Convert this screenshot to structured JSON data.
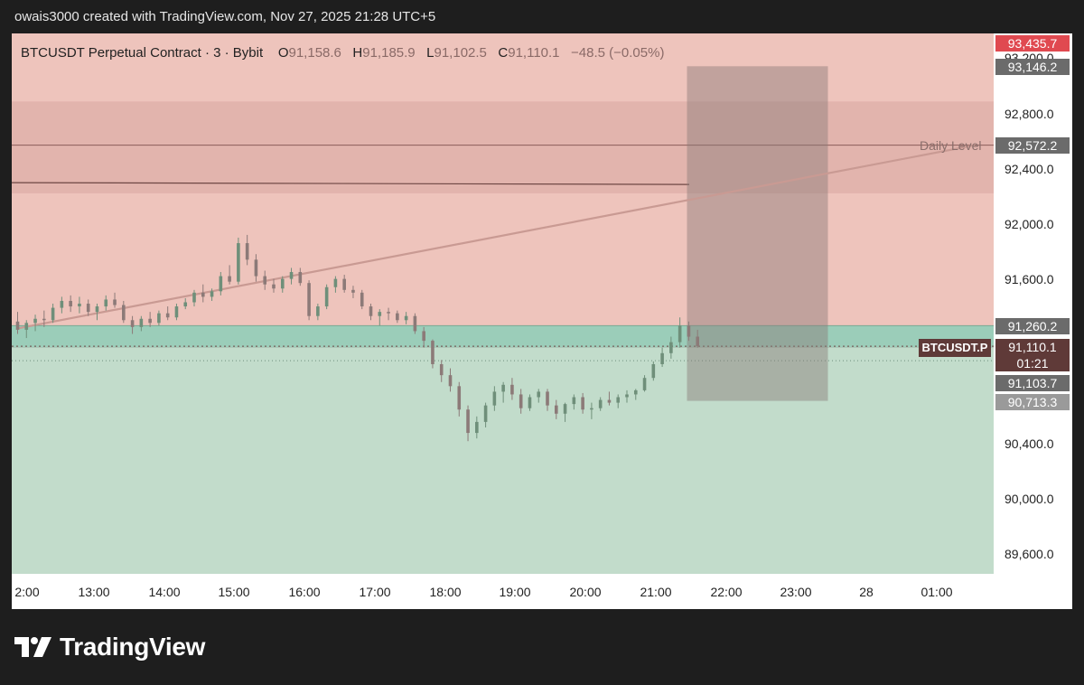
{
  "header": {
    "credit": "owais3000 created with TradingView.com, Nov 27, 2025 21:28 UTC+5"
  },
  "legend": {
    "symbol": "BTCUSDT Perpetual Contract · 3 · Bybit",
    "o_label": "O",
    "o_value": "91,158.6",
    "h_label": "H",
    "h_value": "91,185.9",
    "l_label": "L",
    "l_value": "91,102.5",
    "c_label": "C",
    "c_value": "91,110.1",
    "change": "−48.5 (−0.05%)"
  },
  "price_axis": {
    "ticks": [
      "93,200.0",
      "92,800.0",
      "92,400.0",
      "92,000.0",
      "91,600.0",
      "90,400.0",
      "90,000.0",
      "89,600.0"
    ],
    "tags": {
      "top": "93,435.7",
      "target": "93,146.2",
      "daily": "92,572.2",
      "entry": "91,260.2",
      "last": "91,110.1",
      "countdown": "01:21",
      "low1": "91,103.7",
      "low2": "90,713.3"
    }
  },
  "time_axis": {
    "ticks": [
      "2:00",
      "13:00",
      "14:00",
      "15:00",
      "16:00",
      "17:00",
      "18:00",
      "19:00",
      "20:00",
      "21:00",
      "22:00",
      "23:00",
      "28",
      "01:00"
    ]
  },
  "annotations": {
    "daily_level": "Daily Level",
    "symbol_tag": "BTCUSDT.P"
  },
  "brand": {
    "name": "TradingView"
  },
  "colors": {
    "upper_zone": "#eec4bc",
    "lower_zone": "#c2dccb",
    "entry_band": "#9bcdb9",
    "top_tag": "#e04950",
    "label_gray": "#6b6b6b"
  },
  "chart_data": {
    "type": "candlestick",
    "timeframe": "3",
    "y_range": [
      89400,
      93450
    ],
    "x_range": [
      "11:55",
      "01:30"
    ],
    "series": [
      {
        "values": [
          [
            91290,
            91360,
            91200,
            91230
          ],
          [
            91230,
            91300,
            91170,
            91280
          ],
          [
            91280,
            91340,
            91220,
            91310
          ],
          [
            91310,
            91370,
            91250,
            91300
          ],
          [
            91300,
            91420,
            91280,
            91390
          ],
          [
            91390,
            91470,
            91350,
            91440
          ],
          [
            91440,
            91480,
            91360,
            91400
          ],
          [
            91400,
            91470,
            91350,
            91420
          ],
          [
            91420,
            91450,
            91330,
            91360
          ],
          [
            91360,
            91420,
            91300,
            91400
          ],
          [
            91400,
            91480,
            91370,
            91450
          ],
          [
            91450,
            91500,
            91390,
            91410
          ],
          [
            91410,
            91440,
            91280,
            91300
          ],
          [
            91300,
            91330,
            91200,
            91250
          ],
          [
            91250,
            91330,
            91220,
            91310
          ],
          [
            91310,
            91360,
            91250,
            91280
          ],
          [
            91280,
            91370,
            91260,
            91350
          ],
          [
            91350,
            91400,
            91300,
            91320
          ],
          [
            91320,
            91420,
            91300,
            91400
          ],
          [
            91400,
            91460,
            91380,
            91430
          ],
          [
            91430,
            91520,
            91400,
            91500
          ],
          [
            91500,
            91560,
            91430,
            91470
          ],
          [
            91470,
            91530,
            91440,
            91510
          ],
          [
            91510,
            91650,
            91480,
            91620
          ],
          [
            91620,
            91700,
            91560,
            91580
          ],
          [
            91580,
            91900,
            91560,
            91860
          ],
          [
            91860,
            91920,
            91700,
            91740
          ],
          [
            91740,
            91780,
            91580,
            91620
          ],
          [
            91620,
            91660,
            91520,
            91560
          ],
          [
            91560,
            91600,
            91500,
            91530
          ],
          [
            91530,
            91620,
            91500,
            91600
          ],
          [
            91600,
            91680,
            91560,
            91650
          ],
          [
            91650,
            91680,
            91550,
            91570
          ],
          [
            91570,
            91590,
            91300,
            91330
          ],
          [
            91330,
            91420,
            91300,
            91400
          ],
          [
            91400,
            91560,
            91380,
            91540
          ],
          [
            91540,
            91620,
            91500,
            91600
          ],
          [
            91600,
            91630,
            91500,
            91520
          ],
          [
            91520,
            91550,
            91460,
            91500
          ],
          [
            91500,
            91520,
            91380,
            91400
          ],
          [
            91400,
            91420,
            91300,
            91330
          ],
          [
            91330,
            91380,
            91260,
            91360
          ],
          [
            91360,
            91390,
            91300,
            91350
          ],
          [
            91350,
            91370,
            91280,
            91300
          ],
          [
            91300,
            91360,
            91270,
            91330
          ],
          [
            91330,
            91350,
            91200,
            91220
          ],
          [
            91220,
            91250,
            91100,
            91150
          ],
          [
            91150,
            91160,
            90950,
            90980
          ],
          [
            90980,
            91010,
            90850,
            90900
          ],
          [
            90900,
            90950,
            90780,
            90820
          ],
          [
            90820,
            90850,
            90600,
            90650
          ],
          [
            90650,
            90680,
            90420,
            90480
          ],
          [
            90480,
            90600,
            90440,
            90560
          ],
          [
            90560,
            90700,
            90520,
            90680
          ],
          [
            90680,
            90820,
            90640,
            90780
          ],
          [
            90780,
            90850,
            90700,
            90830
          ],
          [
            90830,
            90880,
            90720,
            90760
          ],
          [
            90760,
            90800,
            90620,
            90660
          ],
          [
            90660,
            90760,
            90640,
            90740
          ],
          [
            90740,
            90800,
            90700,
            90780
          ],
          [
            90780,
            90800,
            90640,
            90680
          ],
          [
            90680,
            90720,
            90580,
            90620
          ],
          [
            90620,
            90700,
            90560,
            90690
          ],
          [
            90690,
            90760,
            90650,
            90740
          ],
          [
            90740,
            90770,
            90620,
            90650
          ],
          [
            90650,
            90700,
            90580,
            90660
          ],
          [
            90660,
            90740,
            90640,
            90720
          ],
          [
            90720,
            90780,
            90680,
            90700
          ],
          [
            90700,
            90760,
            90660,
            90740
          ],
          [
            90740,
            90790,
            90700,
            90760
          ],
          [
            90760,
            90800,
            90720,
            90790
          ],
          [
            90790,
            90900,
            90780,
            90880
          ],
          [
            90880,
            91000,
            90860,
            90980
          ],
          [
            90980,
            91100,
            90960,
            91060
          ],
          [
            91060,
            91180,
            91020,
            91140
          ],
          [
            91140,
            91320,
            91100,
            91260
          ],
          [
            91260,
            91290,
            91150,
            91180
          ],
          [
            91180,
            91230,
            91100,
            91110
          ]
        ]
      }
    ],
    "levels": [
      {
        "label": "Daily Level",
        "price": 92572.2
      },
      {
        "price": 92300
      },
      {
        "price": 91260.2
      },
      {
        "price": 91110.1
      }
    ],
    "zones": [
      {
        "from": 91260.2,
        "to": 93435.7
      },
      {
        "from": 92222,
        "to": 92890
      },
      {
        "from": 91260.2,
        "to": 91103.7
      },
      {
        "from": 89400,
        "to": 91103.7
      }
    ],
    "projection_box": {
      "from": 90713.3,
      "to": 93146.2,
      "start_time": "21:25",
      "end_time": "23:25"
    },
    "trendline": {
      "start": {
        "time": "11:55",
        "price": 91240
      },
      "end": {
        "time": "01:30",
        "price": 92572
      }
    }
  }
}
